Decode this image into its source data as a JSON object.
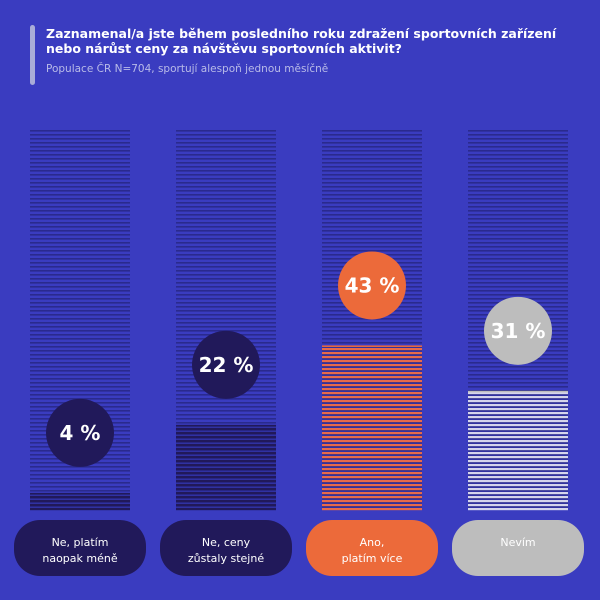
{
  "title": "Zaznamenal/a jste během posledního roku zdražení sportovních zařízení nebo nárůst ceny za návštěvu sportovních aktivit?",
  "subtitle": "Populace ČR N=704, sportují alespoň jednou měsíčně",
  "colors": {
    "background": "#3a3cc0",
    "track_line": "#2a2a8e",
    "dark": "#21195a",
    "orange": "#ec6a3a",
    "orange_fill_line": "#e86a4a",
    "grey": "#bdbdbd",
    "grey_fill_line": "#d4d4ec"
  },
  "chart_data": {
    "type": "bar",
    "title": "Zaznamenal/a jste během posledního roku zdražení sportovních zařízení nebo nárůst ceny za návštěvu sportovních aktivit?",
    "subtitle": "Populace ČR N=704, sportují alespoň jednou měsíčně",
    "categories": [
      [
        "Ne, platím",
        "naopak méně"
      ],
      [
        "Ne, ceny",
        "zůstaly stejné"
      ],
      [
        "Ano,",
        "platím více"
      ],
      [
        "Nevím"
      ]
    ],
    "values": [
      4,
      22,
      43,
      31
    ],
    "value_labels": [
      "4 %",
      "22 %",
      "43 %",
      "31 %"
    ],
    "unit": "%",
    "ylim": [
      0,
      100
    ],
    "bar_styles": [
      "dark",
      "dark",
      "orange",
      "grey"
    ]
  }
}
